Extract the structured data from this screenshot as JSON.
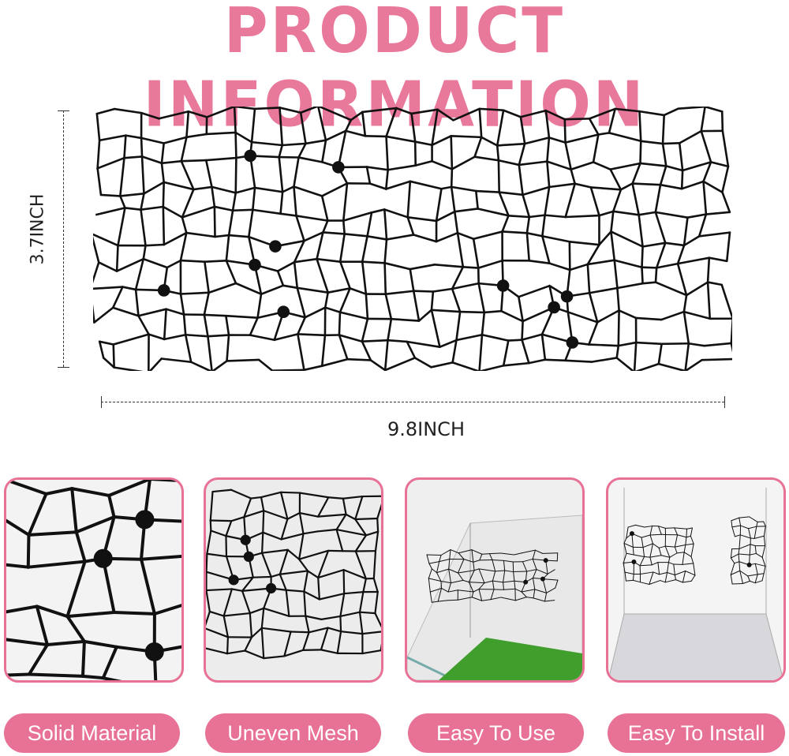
{
  "title": "PRODUCT INFORMATION",
  "dimensions": {
    "height_label": "3.7INCH",
    "width_label": "9.8INCH"
  },
  "features": [
    {
      "label": "Solid Material"
    },
    {
      "label": "Uneven Mesh"
    },
    {
      "label": "Easy To Use"
    },
    {
      "label": "Easy To Install"
    }
  ],
  "colors": {
    "accent": "#e87296",
    "mesh": "#111111"
  }
}
